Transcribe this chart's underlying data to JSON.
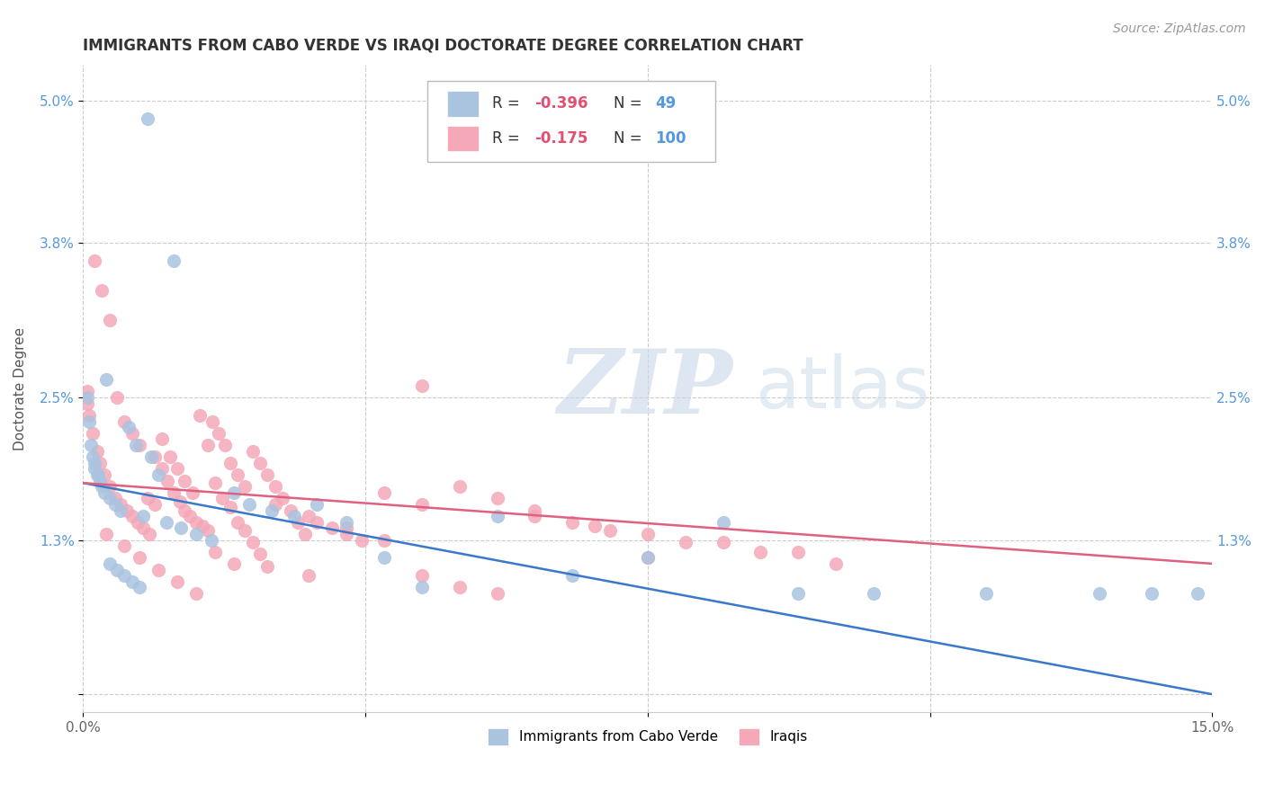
{
  "title": "IMMIGRANTS FROM CABO VERDE VS IRAQI DOCTORATE DEGREE CORRELATION CHART",
  "source": "Source: ZipAtlas.com",
  "ylabel": "Doctorate Degree",
  "ytick_vals": [
    0.0,
    1.3,
    2.5,
    3.8,
    5.0
  ],
  "ytick_labels": [
    "",
    "1.3%",
    "2.5%",
    "3.8%",
    "5.0%"
  ],
  "xmin": 0.0,
  "xmax": 15.0,
  "ymin": -0.15,
  "ymax": 5.3,
  "cabo_verde_color": "#aac4e0",
  "iraqi_color": "#f4a8b8",
  "cabo_verde_line_color": "#3a78c9",
  "iraqi_line_color": "#e06080",
  "cabo_verde_label": "Immigrants from Cabo Verde",
  "iraqi_label": "Iraqis",
  "legend_r1": "-0.396",
  "legend_n1": "49",
  "legend_r2": "-0.175",
  "legend_n2": "100",
  "cabo_verde_x": [
    0.85,
    1.2,
    0.3,
    0.05,
    0.08,
    0.1,
    0.12,
    0.15,
    0.18,
    0.22,
    0.25,
    0.28,
    0.35,
    0.42,
    0.5,
    0.6,
    0.7,
    0.8,
    0.9,
    1.0,
    1.1,
    1.3,
    1.5,
    1.7,
    2.0,
    2.2,
    2.5,
    2.8,
    3.1,
    3.5,
    4.0,
    4.5,
    5.5,
    6.5,
    7.5,
    8.5,
    9.5,
    10.5,
    12.0,
    13.5,
    14.2,
    14.8,
    0.15,
    0.2,
    0.35,
    0.45,
    0.55,
    0.65,
    0.75
  ],
  "cabo_verde_y": [
    4.85,
    3.65,
    2.65,
    2.5,
    2.3,
    2.1,
    2.0,
    1.95,
    1.85,
    1.8,
    1.75,
    1.7,
    1.65,
    1.6,
    1.55,
    2.25,
    2.1,
    1.5,
    2.0,
    1.85,
    1.45,
    1.4,
    1.35,
    1.3,
    1.7,
    1.6,
    1.55,
    1.5,
    1.6,
    1.45,
    1.15,
    0.9,
    1.5,
    1.0,
    1.15,
    1.45,
    0.85,
    0.85,
    0.85,
    0.85,
    0.85,
    0.85,
    1.9,
    1.85,
    1.1,
    1.05,
    1.0,
    0.95,
    0.9
  ],
  "iraqi_x": [
    0.05,
    0.08,
    0.12,
    0.18,
    0.22,
    0.28,
    0.35,
    0.42,
    0.5,
    0.58,
    0.65,
    0.72,
    0.8,
    0.88,
    0.95,
    1.05,
    1.12,
    1.2,
    1.28,
    1.35,
    1.42,
    1.5,
    1.58,
    1.65,
    1.72,
    1.8,
    1.88,
    1.95,
    2.05,
    2.15,
    2.25,
    2.35,
    2.45,
    2.55,
    2.65,
    2.75,
    2.85,
    2.95,
    3.1,
    3.3,
    3.5,
    3.7,
    4.0,
    4.5,
    5.0,
    5.5,
    6.0,
    6.5,
    7.0,
    8.0,
    9.0,
    10.0,
    0.05,
    0.15,
    0.25,
    0.35,
    0.45,
    0.55,
    0.65,
    0.75,
    0.85,
    0.95,
    1.05,
    1.15,
    1.25,
    1.35,
    1.45,
    1.55,
    1.65,
    1.75,
    1.85,
    1.95,
    2.05,
    2.15,
    2.25,
    2.35,
    2.45,
    2.55,
    3.0,
    3.5,
    4.0,
    4.5,
    5.0,
    5.5,
    6.0,
    6.8,
    7.5,
    8.5,
    9.5,
    0.3,
    0.55,
    0.75,
    1.0,
    1.25,
    1.5,
    1.75,
    2.0,
    3.0,
    4.5,
    7.5
  ],
  "iraqi_y": [
    2.55,
    2.35,
    2.2,
    2.05,
    1.95,
    1.85,
    1.75,
    1.65,
    1.6,
    1.55,
    1.5,
    1.45,
    1.4,
    1.35,
    2.0,
    1.9,
    1.8,
    1.7,
    1.62,
    1.55,
    1.5,
    1.45,
    1.42,
    1.38,
    2.3,
    2.2,
    2.1,
    1.95,
    1.85,
    1.75,
    2.05,
    1.95,
    1.85,
    1.75,
    1.65,
    1.55,
    1.45,
    1.35,
    1.45,
    1.4,
    1.35,
    1.3,
    1.7,
    1.6,
    1.75,
    1.65,
    1.55,
    1.45,
    1.38,
    1.28,
    1.2,
    1.1,
    2.45,
    3.65,
    3.4,
    3.15,
    2.5,
    2.3,
    2.2,
    2.1,
    1.65,
    1.6,
    2.15,
    2.0,
    1.9,
    1.8,
    1.7,
    2.35,
    2.1,
    1.78,
    1.65,
    1.58,
    1.45,
    1.38,
    1.28,
    1.18,
    1.08,
    1.6,
    1.5,
    1.4,
    1.3,
    1.0,
    0.9,
    0.85,
    1.5,
    1.42,
    1.35,
    1.28,
    1.2,
    1.35,
    1.25,
    1.15,
    1.05,
    0.95,
    0.85,
    1.2,
    1.1,
    1.0,
    2.6,
    1.15
  ]
}
